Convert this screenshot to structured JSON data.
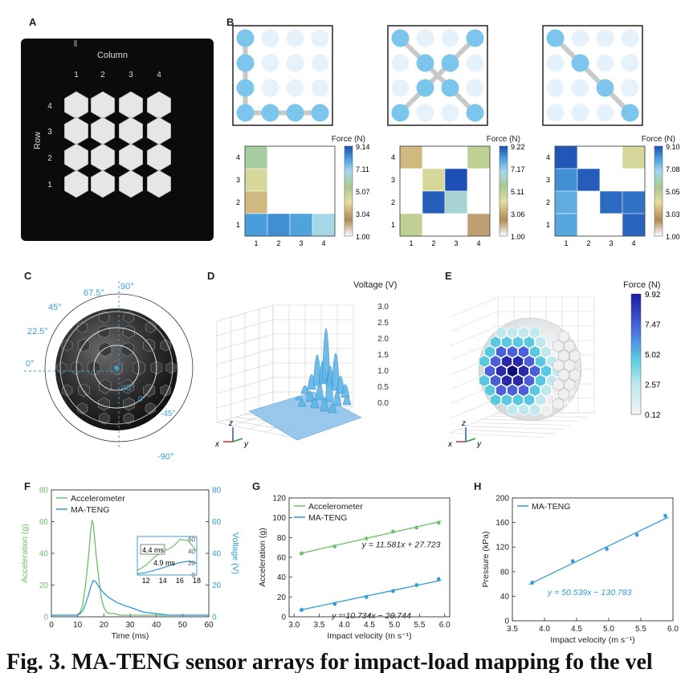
{
  "panel_labels": {
    "a": "A",
    "b": "B",
    "c": "C",
    "d": "D",
    "e": "E",
    "f": "F",
    "g": "G",
    "h": "H"
  },
  "panel_a": {
    "column_label": "Column",
    "row_label": "Row",
    "column_ticks": [
      "1",
      "2",
      "3",
      "4"
    ],
    "row_ticks": [
      "4",
      "3",
      "2",
      "1"
    ]
  },
  "panel_b": {
    "colorbar_title": "Force (N)",
    "x_ticks": [
      "1",
      "2",
      "3",
      "4"
    ],
    "y_ticks": [
      "4",
      "3",
      "2",
      "1"
    ],
    "paths": [
      [
        [
          1,
          4
        ],
        [
          1,
          3
        ],
        [
          1,
          2
        ],
        [
          1,
          1
        ],
        [
          2,
          1
        ],
        [
          3,
          1
        ],
        [
          4,
          1
        ]
      ],
      [
        [
          1,
          4
        ],
        [
          2,
          3
        ],
        [
          3,
          2
        ],
        [
          4,
          1
        ],
        [
          1,
          1
        ],
        [
          2,
          2
        ],
        [
          3,
          3
        ],
        [
          4,
          4
        ]
      ],
      [
        [
          1,
          4
        ],
        [
          2,
          3
        ],
        [
          3,
          2
        ],
        [
          4,
          1
        ]
      ]
    ],
    "maps": [
      {
        "colorbar_ticks": [
          "9.14",
          "7.11",
          "5.07",
          "3.04",
          "1.00"
        ],
        "cells": [
          [
            5.8,
            1,
            1,
            1
          ],
          [
            4.5,
            1,
            1,
            1
          ],
          [
            3.4,
            1,
            1,
            1
          ],
          [
            8.1,
            8.3,
            8.0,
            6.8
          ]
        ]
      },
      {
        "colorbar_ticks": [
          "9.22",
          "7.17",
          "5.11",
          "3.06",
          "1.00"
        ],
        "cells": [
          [
            3.4,
            1,
            1,
            5.0
          ],
          [
            1,
            4.5,
            9.2,
            1
          ],
          [
            1,
            9.0,
            6.5,
            1
          ],
          [
            5.0,
            1,
            1,
            2.2
          ]
        ]
      },
      {
        "colorbar_ticks": [
          "9.10",
          "7.08",
          "5.05",
          "3.03",
          "1.00"
        ],
        "cells": [
          [
            9.1,
            1,
            1,
            4.5
          ],
          [
            8.3,
            9.0,
            1,
            1
          ],
          [
            7.8,
            1,
            8.8,
            8.7
          ],
          [
            7.9,
            1,
            1,
            8.9
          ]
        ]
      }
    ]
  },
  "panel_c": {
    "angle_labels": [
      "90°",
      "67.5°",
      "45°",
      "22.5°",
      "0°",
      "45°",
      "0°",
      "-45°",
      "-90°"
    ]
  },
  "panel_d": {
    "title": "Voltage (V)",
    "z_ticks": [
      "3.0",
      "2.5",
      "2.0",
      "1.5",
      "1.0",
      "0.5",
      "0.0"
    ],
    "axes": {
      "x": "x",
      "y": "y",
      "z": "z"
    }
  },
  "panel_e": {
    "colorbar_title": "Force (N)",
    "colorbar_ticks": [
      "9.92",
      "7.47",
      "5.02",
      "2.57",
      "0.12"
    ],
    "axes": {
      "x": "x",
      "y": "y",
      "z": "z"
    }
  },
  "chart_data": [
    {
      "type": "line",
      "panel": "F",
      "xlabel": "Time (ms)",
      "ylabel": "Acceleration (g)",
      "ylabel_right": "Voltage (V)",
      "xlim": [
        0,
        60
      ],
      "ylim": [
        0,
        80
      ],
      "ylim_right": [
        0,
        80
      ],
      "x_ticks": [
        "0",
        "10",
        "20",
        "30",
        "40",
        "50",
        "60"
      ],
      "y_ticks": [
        "0",
        "20",
        "40",
        "60",
        "80"
      ],
      "legend": "top-left",
      "series": [
        {
          "name": "Accelerometer",
          "color": "#6dbf6a",
          "x": [
            0,
            5,
            10,
            11,
            12,
            13,
            14,
            15,
            15.5,
            16,
            17,
            18,
            19,
            20,
            21,
            22,
            24,
            26,
            28,
            30,
            40,
            60
          ],
          "y": [
            1,
            1,
            1,
            3,
            8,
            20,
            35,
            55,
            61,
            58,
            40,
            25,
            12,
            6,
            3,
            2,
            2,
            1,
            1,
            1,
            1,
            1
          ]
        },
        {
          "name": "MA-TENG",
          "color": "#2f9ad6",
          "x": [
            0,
            5,
            10,
            11,
            12,
            13,
            14,
            15,
            16,
            17,
            18,
            20,
            22,
            25,
            28,
            30,
            35,
            40,
            45,
            60
          ],
          "y": [
            1,
            1,
            1,
            2,
            4,
            8,
            13,
            19,
            23,
            22,
            19,
            15,
            12,
            9,
            7,
            6,
            3,
            2,
            1,
            1
          ]
        }
      ],
      "inset": {
        "x_ticks": [
          "12",
          "14",
          "16",
          "18"
        ],
        "y_ticks": [
          "0",
          "20",
          "40",
          "60"
        ],
        "annotations": [
          "4.4 ms",
          "4.9 ms"
        ]
      }
    },
    {
      "type": "scatter",
      "panel": "G",
      "xlabel": "Impact velocity (m s⁻¹)",
      "ylabel": "Acceleration (g)",
      "xlim": [
        2.9,
        6.1
      ],
      "ylim": [
        0,
        120
      ],
      "x_ticks": [
        "3.0",
        "3.5",
        "4.0",
        "4.5",
        "5.0",
        "5.5",
        "6.0"
      ],
      "y_ticks": [
        "0",
        "20",
        "40",
        "60",
        "80",
        "100",
        "120"
      ],
      "legend": "top-left",
      "series": [
        {
          "name": "Accelerometer",
          "color": "#6dbf6a",
          "x": [
            3.15,
            3.81,
            4.44,
            4.97,
            5.44,
            5.88
          ],
          "y": [
            64,
            71,
            79,
            86,
            90,
            95
          ],
          "fit": "y = 11.581x + 27.723",
          "slope": 11.581,
          "intercept": 27.723
        },
        {
          "name": "MA-TENG",
          "color": "#2f9ad6",
          "x": [
            3.15,
            3.81,
            4.44,
            4.97,
            5.44,
            5.88
          ],
          "y": [
            7,
            13,
            20,
            26,
            32,
            38
          ],
          "fit": "y = 10.734x − 26.744",
          "slope": 10.734,
          "intercept": -26.744
        }
      ]
    },
    {
      "type": "scatter",
      "panel": "H",
      "xlabel": "Impact velocity (m s⁻¹)",
      "ylabel": "Pressure (kPa)",
      "xlim": [
        3.5,
        6.0
      ],
      "ylim": [
        0,
        200
      ],
      "x_ticks": [
        "3.5",
        "4.0",
        "4.5",
        "5.0",
        "5.5",
        "6.0"
      ],
      "y_ticks": [
        "0",
        "40",
        "80",
        "120",
        "160",
        "200"
      ],
      "legend": "top-left",
      "series": [
        {
          "name": "MA-TENG",
          "color": "#2f9ad6",
          "x": [
            3.81,
            4.44,
            4.97,
            5.44,
            5.88
          ],
          "y": [
            62,
            97,
            117,
            140,
            171
          ],
          "fit": "y = 50.539x − 130.783",
          "slope": 50.539,
          "intercept": -130.783
        }
      ]
    }
  ],
  "caption": "Fig. 3. MA-TENG sensor arrays for impact-load mapping fo the vel"
}
